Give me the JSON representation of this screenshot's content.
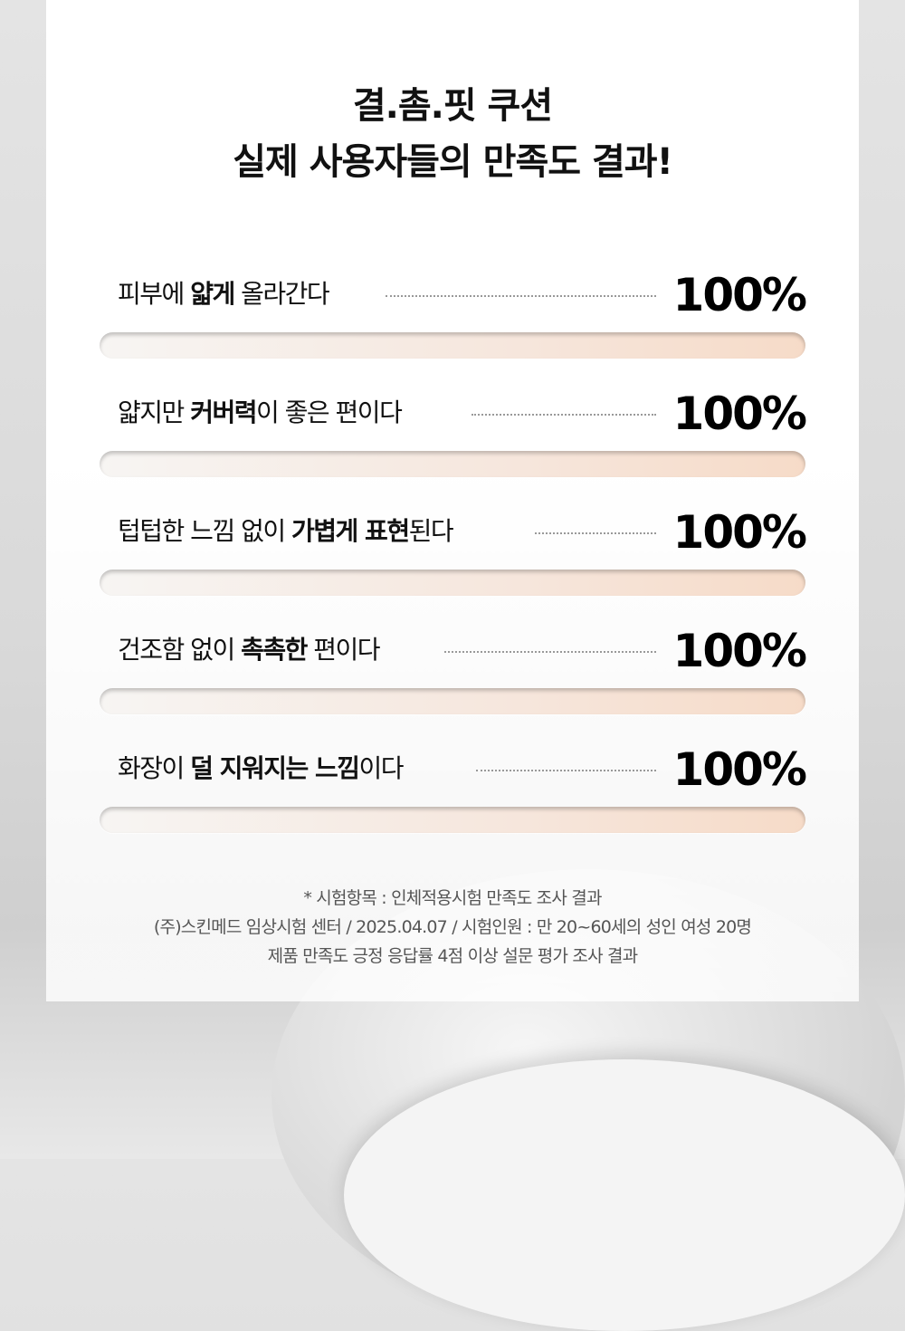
{
  "title": {
    "line1": "결.촘.핏 쿠션",
    "line2": "실제 사용자들의 만족도 결과!"
  },
  "rows": [
    {
      "pre": "피부에 ",
      "bold": "얇게",
      "post": " 올라간다",
      "value": "100%",
      "fill": 100
    },
    {
      "pre": "얇지만 ",
      "bold": "커버력",
      "post": "이 좋은 편이다",
      "value": "100%",
      "fill": 100
    },
    {
      "pre": "텁텁한 느낌 없이 ",
      "bold": "가볍게 표현",
      "post": "된다",
      "value": "100%",
      "fill": 100
    },
    {
      "pre": "건조함 없이 ",
      "bold": "촉촉한",
      "post": " 편이다",
      "value": "100%",
      "fill": 100
    },
    {
      "pre": "화장이 ",
      "bold": "덜 지워지는 느낌",
      "post": "이다",
      "value": "100%",
      "fill": 100
    }
  ],
  "footnote": {
    "line1": "* 시험항목 : 인체적용시험 만족도 조사 결과",
    "line2": "(주)스킨메드 임상시험 센터 / 2025.04.07 / 시험인원 : 만 20~60세의 성인 여성 20명",
    "line3": "제품 만족도 긍정 응답률 4점 이상 설문 평가 조사 결과"
  }
}
